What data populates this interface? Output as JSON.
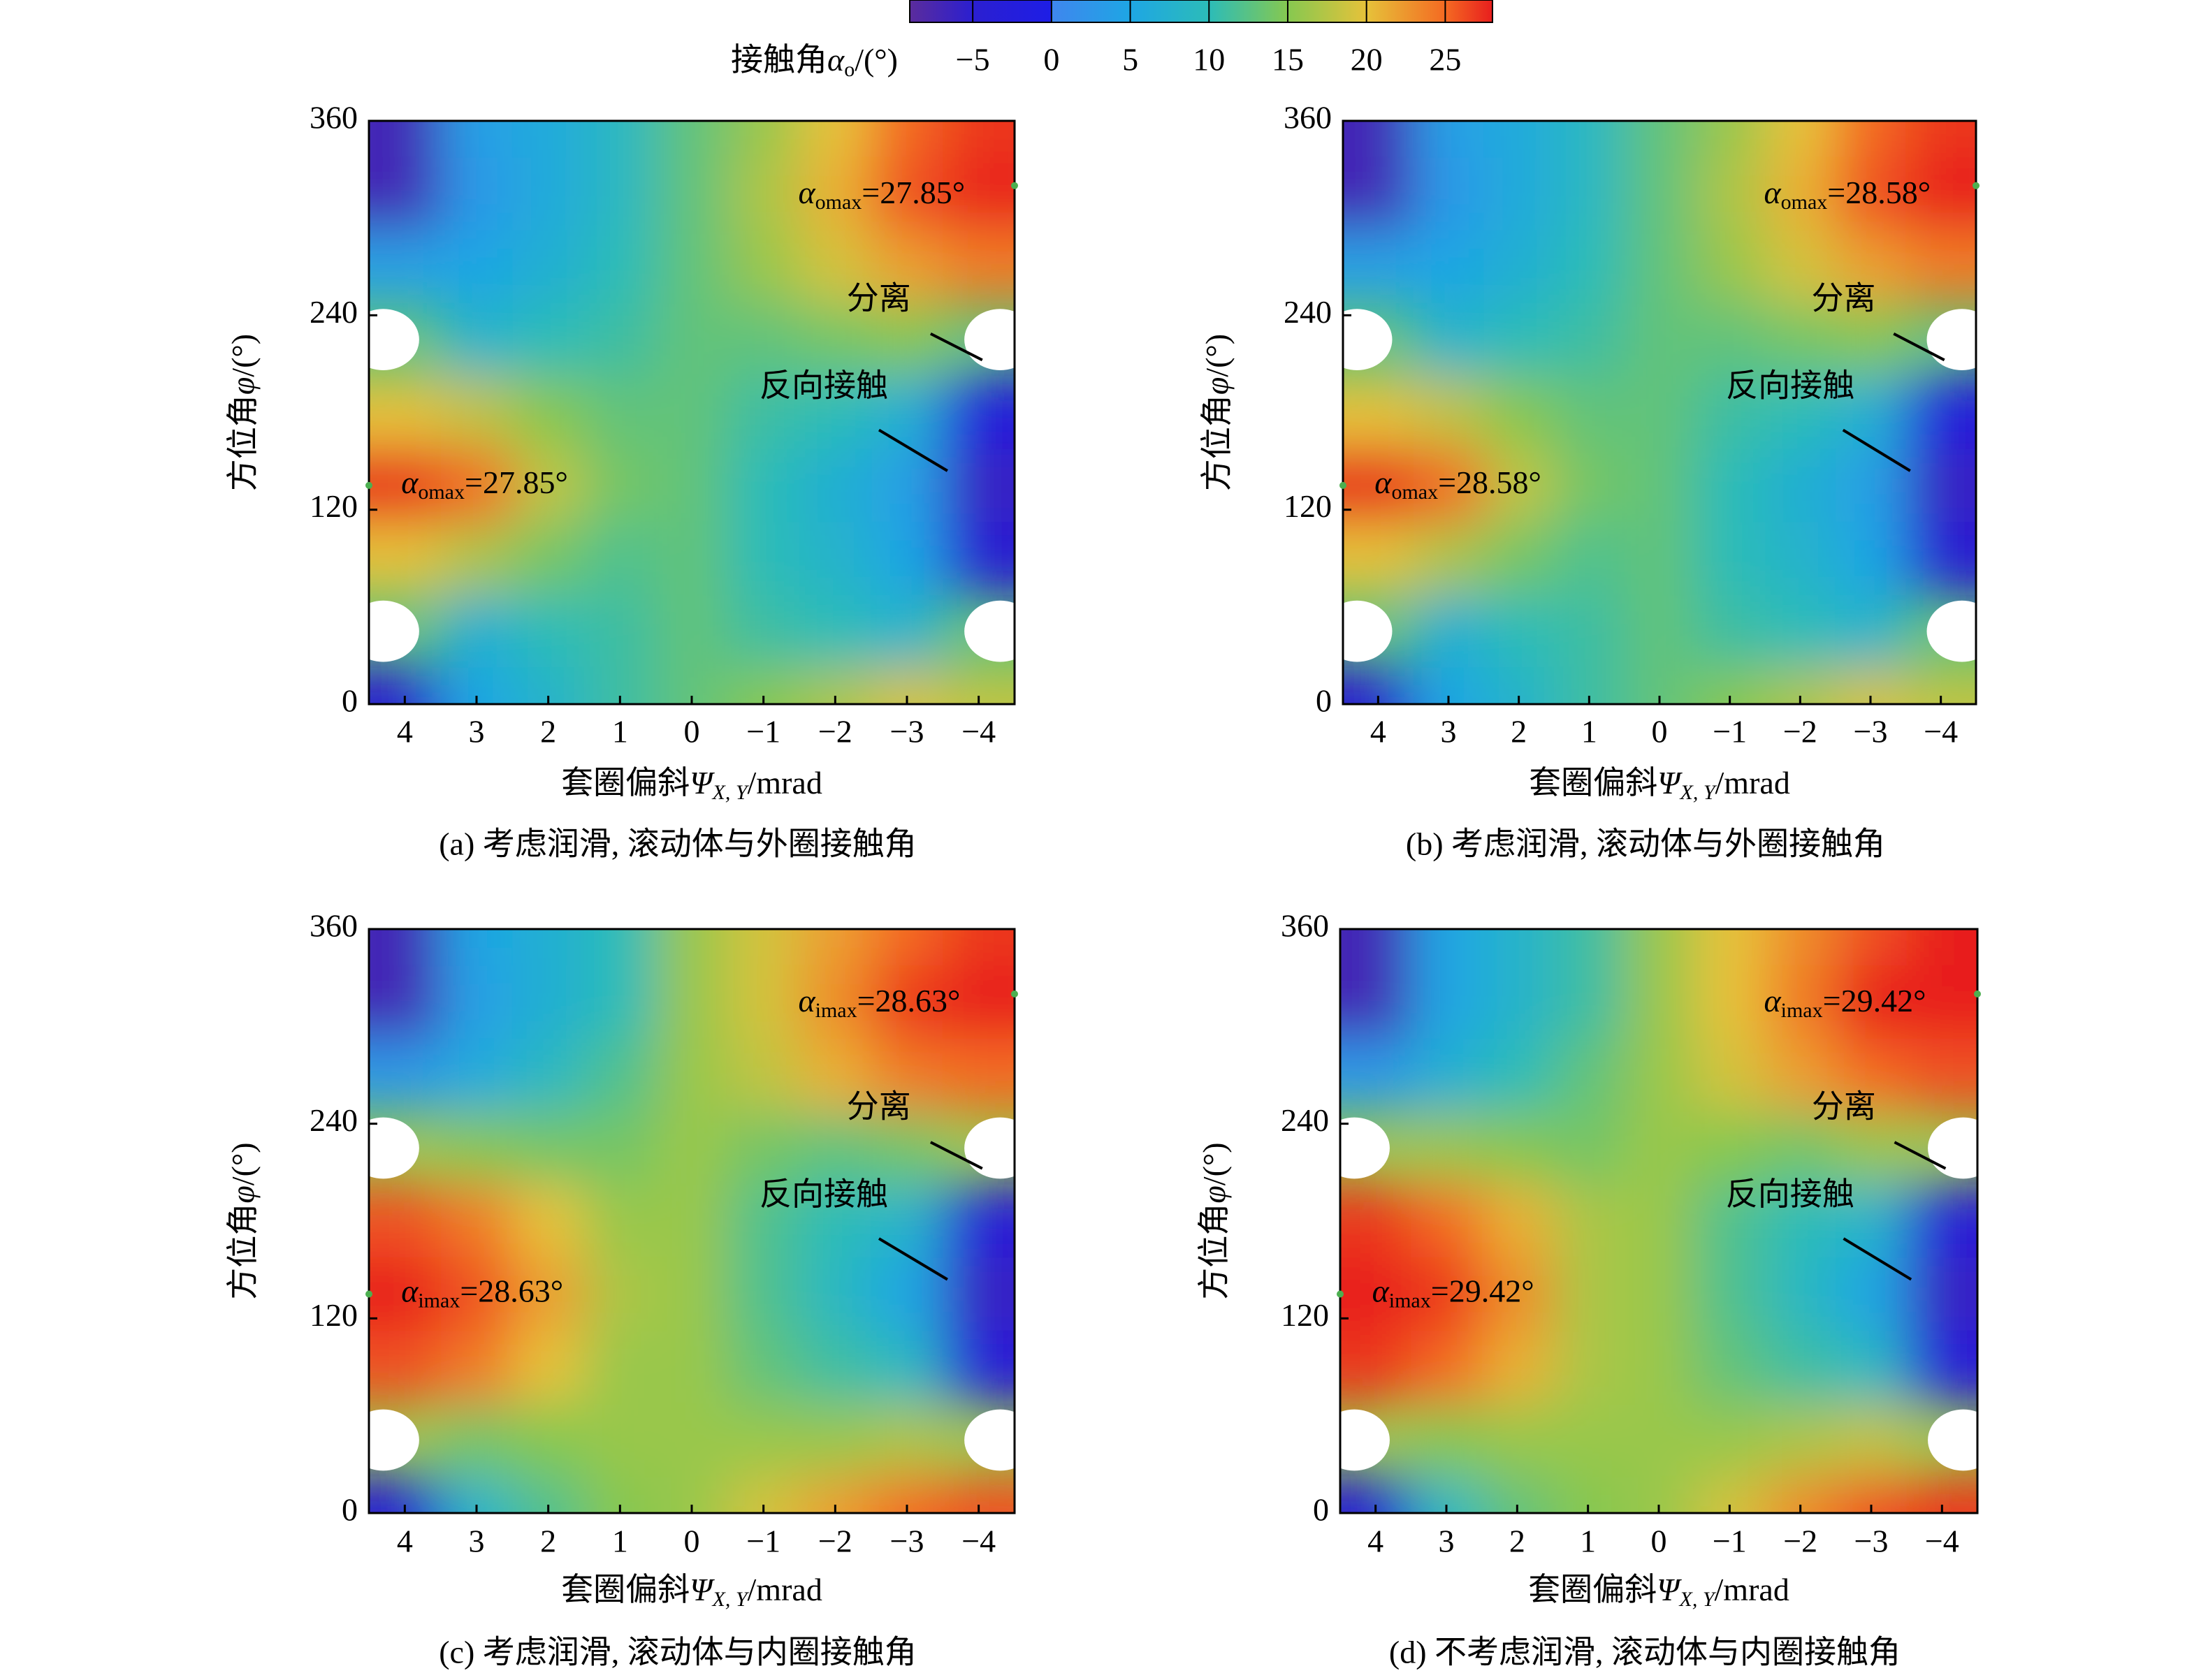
{
  "colorbar": {
    "label": {
      "main": "接触角",
      "symbol": "α",
      "sub": "o",
      "unit": "/(°)"
    },
    "lim": [
      -9,
      28
    ],
    "ticks": [
      {
        "value": -5,
        "label": "−5"
      },
      0,
      5,
      10,
      15,
      20,
      25
    ],
    "colormap": [
      {
        "value": -9,
        "color": "#5b2c9c"
      },
      {
        "value": -5,
        "color": "#2b1fd0"
      },
      {
        "value": 0,
        "color": "#1e1ee6"
      },
      {
        "value": 0,
        "color": "#3f86ee"
      },
      {
        "value": 5,
        "color": "#1ea6e4"
      },
      {
        "value": 10,
        "color": "#2cbcb8"
      },
      {
        "value": 15,
        "color": "#86c850"
      },
      {
        "value": 20,
        "color": "#e6c23a"
      },
      {
        "value": 25,
        "color": "#f46a22"
      },
      {
        "value": 28,
        "color": "#e81e1e"
      }
    ]
  },
  "chart_data": [
    {
      "type": "heatmap",
      "caption": "(a) 考虑润滑, 滚动体与外圈接触角",
      "xlabel": {
        "main": "套圈偏斜",
        "symbol": "Ψ",
        "sub": "X, Y",
        "unit": "/mrad"
      },
      "ylabel": {
        "main": "方位角",
        "symbol": "φ",
        "unit": "/(°)"
      },
      "x": [
        4,
        3,
        2,
        1,
        0,
        -1,
        -2,
        -3,
        -4
      ],
      "y": [
        0,
        45,
        90,
        135,
        180,
        225,
        270,
        315,
        360
      ],
      "values": [
        [
          -5,
          5,
          8,
          11,
          13,
          15,
          17,
          19,
          18
        ],
        [
          null,
          7,
          10,
          11,
          13,
          11,
          10,
          8,
          null
        ],
        [
          20,
          17,
          14,
          12,
          13,
          10,
          8,
          5,
          -4
        ],
        [
          27.85,
          25,
          18,
          14,
          13,
          10,
          7,
          4,
          -6
        ],
        [
          20,
          18,
          15,
          13,
          13,
          11,
          10,
          7,
          -2
        ],
        [
          null,
          8,
          10,
          11,
          13,
          13,
          14,
          15,
          null
        ],
        [
          4,
          5,
          7,
          10,
          13,
          16,
          19,
          22,
          24
        ],
        [
          -7,
          3,
          6,
          9,
          13,
          17,
          21,
          26,
          27.85
        ],
        [
          -7,
          4,
          6,
          9,
          13,
          16,
          20,
          25,
          27
        ]
      ],
      "xlim": [
        4.5,
        -4.5
      ],
      "ylim": [
        0,
        360
      ],
      "xticks": [
        4,
        3,
        2,
        1,
        0,
        {
          "value": -1,
          "label": "−1"
        },
        {
          "value": -2,
          "label": "−2"
        },
        {
          "value": -3,
          "label": "−3"
        },
        {
          "value": -4,
          "label": "−4"
        }
      ],
      "yticks": [
        0,
        120,
        240,
        360
      ],
      "max_label": {
        "symbol": "α",
        "sub": "omax",
        "text": "=27.85°"
      },
      "max_points": [
        {
          "x": -4.5,
          "y": 320
        },
        {
          "x": 4.5,
          "y": 135
        }
      ],
      "annotations": [
        "分离",
        "反向接触"
      ]
    },
    {
      "type": "heatmap",
      "caption": "(b) 考虑润滑, 滚动体与外圈接触角",
      "xlabel": {
        "main": "套圈偏斜",
        "symbol": "Ψ",
        "sub": "X, Y",
        "unit": "/mrad"
      },
      "ylabel": {
        "main": "方位角",
        "symbol": "φ",
        "unit": "/(°)"
      },
      "x": [
        4,
        3,
        2,
        1,
        0,
        -1,
        -2,
        -3,
        -4
      ],
      "y": [
        0,
        45,
        90,
        135,
        180,
        225,
        270,
        315,
        360
      ],
      "values": [
        [
          -5,
          5,
          8,
          11,
          13,
          15,
          17,
          19,
          18
        ],
        [
          null,
          7,
          10,
          11,
          13,
          11,
          10,
          8,
          null
        ],
        [
          20,
          17,
          14,
          12,
          13,
          10,
          8,
          5,
          -4
        ],
        [
          28.58,
          25,
          18,
          14,
          13,
          10,
          7,
          4,
          -6
        ],
        [
          20,
          18,
          15,
          13,
          13,
          11,
          10,
          7,
          -2
        ],
        [
          null,
          8,
          10,
          11,
          13,
          13,
          14,
          15,
          null
        ],
        [
          4,
          5,
          7,
          10,
          13,
          16,
          19,
          22,
          24
        ],
        [
          -7,
          3,
          6,
          9,
          13,
          17,
          21,
          26,
          28.58
        ],
        [
          -7,
          4,
          6,
          9,
          13,
          16,
          20,
          25,
          27
        ]
      ],
      "xlim": [
        4.5,
        -4.5
      ],
      "ylim": [
        0,
        360
      ],
      "xticks": [
        4,
        3,
        2,
        1,
        0,
        {
          "value": -1,
          "label": "−1"
        },
        {
          "value": -2,
          "label": "−2"
        },
        {
          "value": -3,
          "label": "−3"
        },
        {
          "value": -4,
          "label": "−4"
        }
      ],
      "yticks": [
        0,
        120,
        240,
        360
      ],
      "max_label": {
        "symbol": "α",
        "sub": "omax",
        "text": "=28.58°"
      },
      "max_points": [
        {
          "x": -4.5,
          "y": 320
        },
        {
          "x": 4.5,
          "y": 135
        }
      ],
      "annotations": [
        "分离",
        "反向接触"
      ]
    },
    {
      "type": "heatmap",
      "caption": "(c) 考虑润滑, 滚动体与内圈接触角",
      "xlabel": {
        "main": "套圈偏斜",
        "symbol": "Ψ",
        "sub": "X, Y",
        "unit": "/mrad"
      },
      "ylabel": {
        "main": "方位角",
        "symbol": "φ",
        "unit": "/(°)"
      },
      "x": [
        4,
        3,
        2,
        1,
        0,
        -1,
        -2,
        -3,
        -4
      ],
      "y": [
        0,
        45,
        90,
        135,
        180,
        225,
        270,
        315,
        360
      ],
      "values": [
        [
          -4,
          8,
          12,
          15,
          16,
          19,
          22,
          25,
          26
        ],
        [
          null,
          14,
          15,
          16,
          16,
          16,
          16,
          17,
          null
        ],
        [
          26,
          24,
          20,
          16,
          16,
          13,
          11,
          9,
          -3
        ],
        [
          28.63,
          26,
          22,
          17,
          16,
          12,
          9,
          5,
          -6
        ],
        [
          26,
          24,
          20,
          16,
          16,
          12,
          10,
          8,
          -3
        ],
        [
          null,
          15,
          14,
          14,
          16,
          14,
          13,
          14,
          null
        ],
        [
          3,
          6,
          9,
          12,
          16,
          18,
          21,
          24,
          25
        ],
        [
          -7,
          4,
          7,
          10,
          16,
          19,
          23,
          27,
          28.63
        ],
        [
          -7,
          5,
          7,
          10,
          16,
          19,
          22,
          25,
          27
        ]
      ],
      "xlim": [
        4.5,
        -4.5
      ],
      "ylim": [
        0,
        360
      ],
      "xticks": [
        4,
        3,
        2,
        1,
        0,
        {
          "value": -1,
          "label": "−1"
        },
        {
          "value": -2,
          "label": "−2"
        },
        {
          "value": -3,
          "label": "−3"
        },
        {
          "value": -4,
          "label": "−4"
        }
      ],
      "yticks": [
        0,
        120,
        240,
        360
      ],
      "max_label": {
        "symbol": "α",
        "sub": "imax",
        "text": "=28.63°"
      },
      "max_points": [
        {
          "x": -4.5,
          "y": 320
        },
        {
          "x": 4.5,
          "y": 135
        }
      ],
      "annotations": [
        "分离",
        "反向接触"
      ]
    },
    {
      "type": "heatmap",
      "caption": "(d) 不考虑润滑, 滚动体与内圈接触角",
      "xlabel": {
        "main": "套圈偏斜",
        "symbol": "Ψ",
        "sub": "X, Y",
        "unit": "/mrad"
      },
      "ylabel": {
        "main": "方位角",
        "symbol": "φ",
        "unit": "/(°)"
      },
      "x": [
        4,
        3,
        2,
        1,
        0,
        -1,
        -2,
        -3,
        -4
      ],
      "y": [
        0,
        45,
        90,
        135,
        180,
        225,
        270,
        315,
        360
      ],
      "values": [
        [
          -4,
          9,
          13,
          15,
          16,
          19,
          23,
          26,
          27
        ],
        [
          null,
          15,
          16,
          16,
          16,
          16,
          17,
          18,
          null
        ],
        [
          27,
          25,
          21,
          17,
          16,
          13,
          11,
          9,
          -3
        ],
        [
          29.42,
          27,
          23,
          17,
          16,
          12,
          9,
          5,
          -6
        ],
        [
          27,
          25,
          21,
          17,
          16,
          12,
          10,
          8,
          -3
        ],
        [
          null,
          16,
          15,
          14,
          16,
          15,
          14,
          16,
          null
        ],
        [
          3,
          7,
          10,
          13,
          16,
          19,
          22,
          25,
          26
        ],
        [
          -7,
          5,
          8,
          11,
          16,
          20,
          24,
          28,
          29.42
        ],
        [
          -7,
          5,
          8,
          11,
          16,
          20,
          23,
          26,
          28
        ]
      ],
      "xlim": [
        4.5,
        -4.5
      ],
      "ylim": [
        0,
        360
      ],
      "xticks": [
        4,
        3,
        2,
        1,
        0,
        {
          "value": -1,
          "label": "−1"
        },
        {
          "value": -2,
          "label": "−2"
        },
        {
          "value": -3,
          "label": "−3"
        },
        {
          "value": -4,
          "label": "−4"
        }
      ],
      "yticks": [
        0,
        120,
        240,
        360
      ],
      "max_label": {
        "symbol": "α",
        "sub": "imax",
        "text": "=29.42°"
      },
      "max_points": [
        {
          "x": -4.5,
          "y": 320
        },
        {
          "x": 4.5,
          "y": 135
        }
      ],
      "annotations": [
        "分离",
        "反向接触"
      ]
    }
  ]
}
